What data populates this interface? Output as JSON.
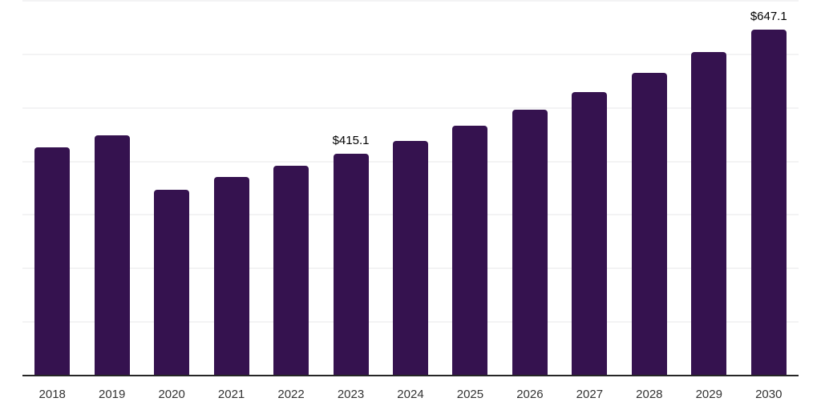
{
  "chart_data": {
    "type": "bar",
    "categories": [
      "2018",
      "2019",
      "2020",
      "2021",
      "2022",
      "2023",
      "2024",
      "2025",
      "2026",
      "2027",
      "2028",
      "2029",
      "2030"
    ],
    "values": [
      428.0,
      450.0,
      348.0,
      372.5,
      393.0,
      415.1,
      440.0,
      467.5,
      497.5,
      531.0,
      567.0,
      606.5,
      647.1
    ],
    "data_labels": {
      "2023": "$415.1",
      "2030": "$647.1"
    },
    "ylim": [
      0,
      700
    ],
    "grid_step": 100,
    "grid": "horizontal-only",
    "legend_position": "none",
    "title": "",
    "xlabel": "",
    "ylabel": "",
    "colors": {
      "bar": "#35124f",
      "gridline": "#f3f3f4",
      "axis_line": "#262626",
      "tick_label": "#333333",
      "data_label": "#000000",
      "background": "#ffffff"
    }
  }
}
